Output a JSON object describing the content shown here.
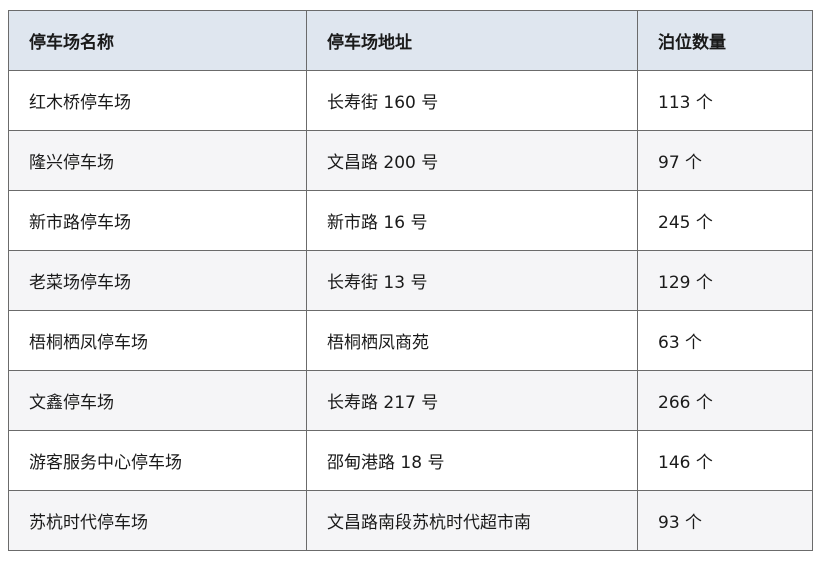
{
  "table": {
    "headers": [
      "停车场名称",
      "停车场地址",
      "泊位数量"
    ],
    "rows": [
      [
        "红木桥停车场",
        "长寿街 160 号",
        "113 个"
      ],
      [
        "隆兴停车场",
        "文昌路 200 号",
        "97 个"
      ],
      [
        "新市路停车场",
        "新市路 16 号",
        "245 个"
      ],
      [
        "老菜场停车场",
        "长寿街 13 号",
        "129 个"
      ],
      [
        "梧桐栖凤停车场",
        "梧桐栖凤商苑",
        "63 个"
      ],
      [
        "文鑫停车场",
        "长寿路 217 号",
        "266 个"
      ],
      [
        "游客服务中心停车场",
        "邵甸港路 18 号",
        "146 个"
      ],
      [
        "苏杭时代停车场",
        "文昌路南段苏杭时代超市南",
        "93 个"
      ]
    ]
  },
  "colors": {
    "header_bg": "#dfe6ef",
    "alt_row_bg": "#f5f5f7",
    "border": "#6b6b6b"
  }
}
